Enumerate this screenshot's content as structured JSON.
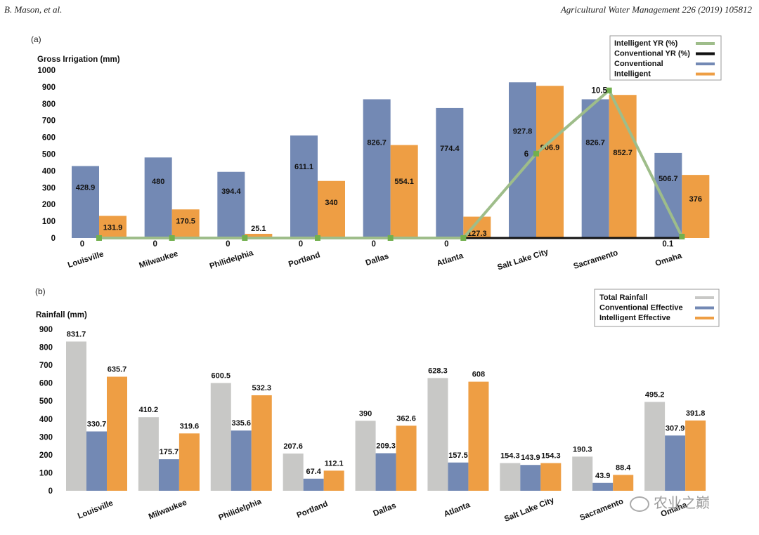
{
  "header": {
    "left": "B. Mason, et al.",
    "right": "Agricultural Water Management 226 (2019) 105812"
  },
  "colors": {
    "conventional": "#7389b4",
    "intelligent": "#ee9e44",
    "total": "#c8c8c6",
    "yr_intelligent": "#9ebd8a",
    "yr_marker": "#72b04e",
    "yr_conventional": "#111111"
  },
  "watermark": {
    "text": "农业之巅",
    "icon": "wechat-icon"
  },
  "chart_data": [
    {
      "panel": "(a)",
      "type": "bar",
      "ylabel": "Gross  Irrigation (mm)",
      "ylim": [
        0,
        1000
      ],
      "yticks": [
        0,
        100,
        200,
        300,
        400,
        500,
        600,
        700,
        800,
        900,
        1000
      ],
      "categories": [
        "Louisville",
        "Milwaukee",
        "Philidelphia",
        "Portland",
        "Dallas",
        "Atlanta",
        "Salt Lake City",
        "Sacramento",
        "Omaha"
      ],
      "series": [
        {
          "name": "Conventional",
          "values": [
            428.9,
            480,
            394.4,
            611.1,
            826.7,
            774.4,
            927.8,
            826.7,
            506.7
          ],
          "labels": [
            "428.9",
            "480",
            "394.4",
            "611.1",
            "826.7",
            "774.4",
            "927.8",
            "826.7",
            "506.7"
          ]
        },
        {
          "name": "Intelligent",
          "values": [
            131.9,
            170.5,
            25.1,
            340,
            554.1,
            127.3,
            906.9,
            852.7,
            376
          ],
          "labels": [
            "131.9",
            "170.5",
            "25.1",
            "340",
            "554.1",
            "127.3",
            "906.9",
            "852.7",
            "376"
          ]
        }
      ],
      "lines": [
        {
          "name": "Intelligent YR (%)",
          "values": [
            0,
            0,
            0,
            0,
            0,
            0,
            6,
            10.5,
            0.1
          ],
          "labels": [
            "0",
            "0",
            "0",
            "0",
            "0",
            "0",
            "6",
            "10.5",
            "0.1"
          ]
        },
        {
          "name": "Conventional YR (%)",
          "values": [
            0,
            0,
            0,
            0,
            0,
            0,
            0,
            0,
            0
          ]
        }
      ],
      "legend": [
        "Intelligent YR (%)",
        "Conventional YR (%)",
        "Conventional",
        "Intelligent"
      ],
      "legend_position": "top-right",
      "grid": false
    },
    {
      "panel": "(b)",
      "type": "bar",
      "ylabel": "Rainfall (mm)",
      "ylim": [
        0,
        900
      ],
      "yticks": [
        0,
        100,
        200,
        300,
        400,
        500,
        600,
        700,
        800,
        900
      ],
      "categories": [
        "Louisville",
        "Milwaukee",
        "Philidelphia",
        "Portland",
        "Dallas",
        "Atlanta",
        "Salt Lake City",
        "Sacramento",
        "Omaha"
      ],
      "series": [
        {
          "name": "Total Rainfall",
          "values": [
            831.7,
            410.2,
            600.5,
            207.6,
            390,
            628.3,
            154.3,
            190.3,
            495.2
          ],
          "labels": [
            "831.7",
            "410.2",
            "600.5",
            "207.6",
            "390",
            "628.3",
            "154.3",
            "190.3",
            "495.2"
          ]
        },
        {
          "name": "Conventional  Effective",
          "values": [
            330.7,
            175.7,
            335.6,
            67.4,
            209.3,
            157.5,
            143.9,
            43.9,
            307.9
          ],
          "labels": [
            "330.7",
            "175.7",
            "335.6",
            "67.4",
            "209.3",
            "157.5",
            "143.9",
            "43.9",
            "307.9"
          ]
        },
        {
          "name": "Intelligent Effective",
          "values": [
            635.7,
            319.6,
            532.3,
            112.1,
            362.6,
            608,
            154.3,
            88.4,
            391.8
          ],
          "labels": [
            "635.7",
            "319.6",
            "532.3",
            "112.1",
            "362.6",
            "608",
            "154.3",
            "88.4",
            "391.8"
          ]
        }
      ],
      "legend": [
        "Total Rainfall",
        "Conventional  Effective",
        "Intelligent Effective"
      ],
      "legend_position": "top-right",
      "grid": false
    }
  ]
}
